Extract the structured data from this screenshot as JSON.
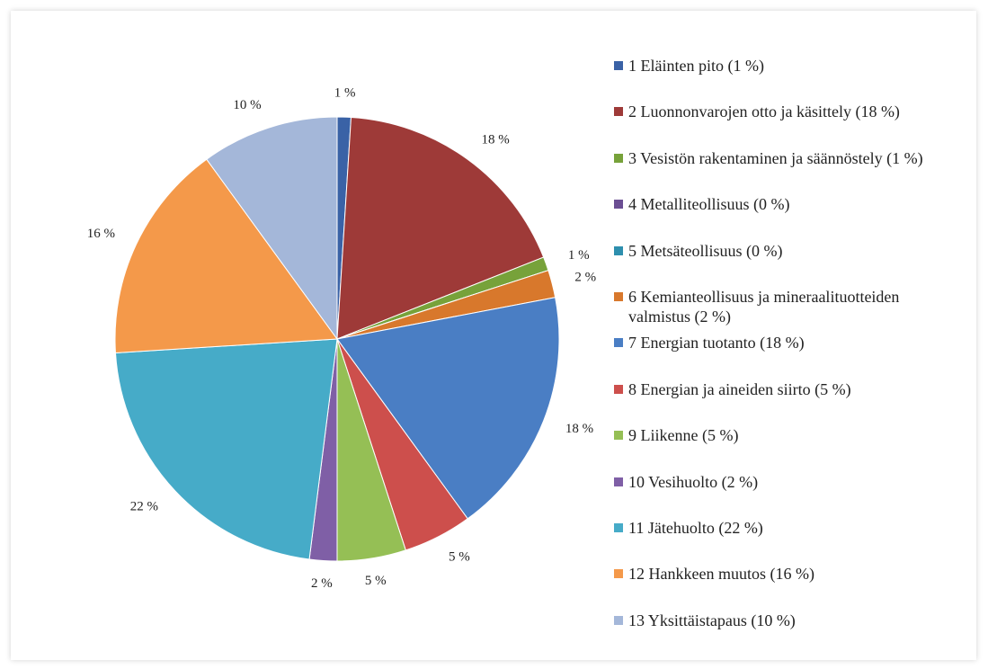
{
  "chart_data": {
    "type": "pie",
    "categories": [
      "1 Eläinten pito (1 %)",
      "2 Luonnonvarojen otto ja käsittely (18 %)",
      "3 Vesistön rakentaminen ja säännöstely (1 %)",
      "4 Metalliteollisuus (0 %)",
      "5 Metsäteollisuus (0 %)",
      "6 Kemianteollisuus ja mineraalituotteiden valmistus (2 %)",
      "7 Energian tuotanto (18 %)",
      "8 Energian ja aineiden siirto (5 %)",
      "9 Liikenne (5 %)",
      "10 Vesihuolto (2 %)",
      "11 Jätehuolto (22 %)",
      "12 Hankkeen muutos (16 %)",
      "13 Yksittäistapaus (10 %)"
    ],
    "values": [
      1,
      18,
      1,
      0,
      0,
      2,
      18,
      5,
      5,
      2,
      22,
      16,
      10
    ],
    "value_labels": [
      "1 %",
      "18 %",
      "1 %",
      null,
      null,
      "2 %",
      "18 %",
      "5 %",
      "5 %",
      "2 %",
      "22 %",
      "16 %",
      "10 %"
    ],
    "colors": [
      "#3a62a6",
      "#9e3a38",
      "#77a23a",
      "#6b4e93",
      "#2e8fae",
      "#d8782c",
      "#4a7ec4",
      "#cd4f4c",
      "#95bf55",
      "#7f5fa6",
      "#46abc8",
      "#f4994a",
      "#a4b7d9"
    ],
    "legend": "right"
  }
}
